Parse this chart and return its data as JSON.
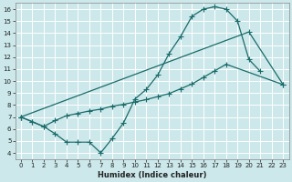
{
  "xlabel": "Humidex (Indice chaleur)",
  "bg_color": "#cce8ea",
  "line_color": "#1a6b6b",
  "grid_color": "#ffffff",
  "ylim": [
    3.5,
    16.5
  ],
  "xlim": [
    -0.5,
    23.5
  ],
  "yticks": [
    4,
    5,
    6,
    7,
    8,
    9,
    10,
    11,
    12,
    13,
    14,
    15,
    16
  ],
  "xticks": [
    0,
    1,
    2,
    3,
    4,
    5,
    6,
    7,
    8,
    9,
    10,
    11,
    12,
    13,
    14,
    15,
    16,
    17,
    18,
    19,
    20,
    21,
    22,
    23
  ],
  "line1_x": [
    0,
    1,
    2,
    3,
    4,
    5,
    6,
    7,
    8,
    9,
    10,
    11,
    12,
    13,
    14,
    15,
    16,
    17,
    18,
    19,
    20,
    21
  ],
  "line1_y": [
    7.0,
    6.6,
    6.2,
    5.6,
    4.9,
    4.9,
    4.9,
    4.0,
    5.2,
    6.5,
    8.5,
    9.3,
    10.5,
    12.3,
    13.7,
    15.4,
    16.0,
    16.2,
    16.0,
    15.0,
    11.8,
    10.8
  ],
  "line2_x": [
    0,
    20,
    23
  ],
  "line2_y": [
    7.0,
    14.1,
    9.7
  ],
  "line3_x": [
    0,
    1,
    2,
    3,
    4,
    5,
    6,
    7,
    8,
    9,
    10,
    11,
    12,
    13,
    14,
    15,
    16,
    17,
    18,
    23
  ],
  "line3_y": [
    7.0,
    6.6,
    6.2,
    6.7,
    7.1,
    7.3,
    7.5,
    7.65,
    7.9,
    8.05,
    8.25,
    8.45,
    8.7,
    8.95,
    9.35,
    9.75,
    10.3,
    10.85,
    11.4,
    9.7
  ]
}
